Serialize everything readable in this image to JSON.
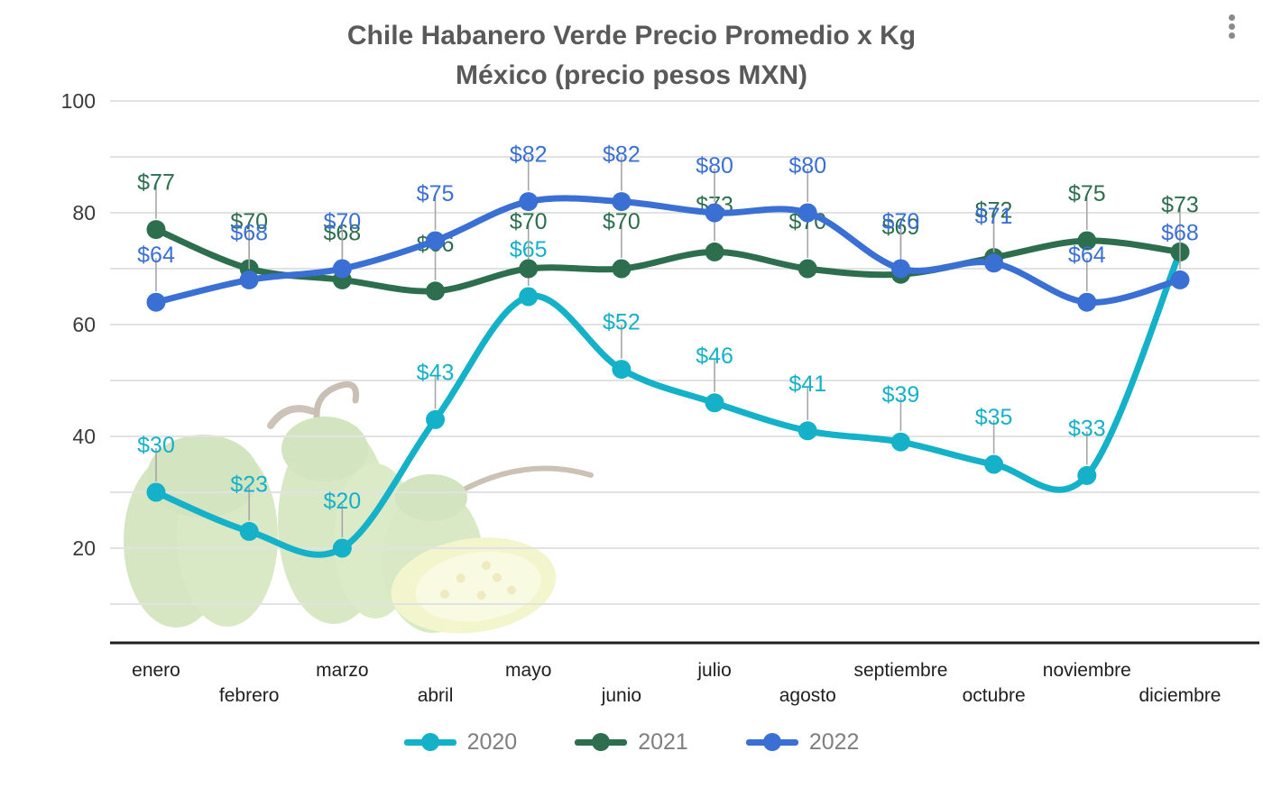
{
  "title": {
    "line1": "Chile Habanero Verde Precio Promedio x Kg",
    "line2": "México (precio pesos MXN)"
  },
  "menu": {
    "icon": "kebab-menu"
  },
  "colors": {
    "series_2020": "#14b1c8",
    "series_2021": "#2d6e4f",
    "series_2022": "#3a6fd4",
    "gridline": "#e2e2e2",
    "axis_line": "#1f1f1f",
    "leader_line": "#a6a6a6",
    "tick_text": "#3a3a3a",
    "month_text": "#1f1f1f",
    "title_text": "#595959",
    "legend_text": "#7f7f7f"
  },
  "chart_data": {
    "type": "line",
    "title": "Chile Habanero Verde Precio Promedio x Kg — México (precio pesos MXN)",
    "categories": [
      "enero",
      "febrero",
      "marzo",
      "abril",
      "mayo",
      "junio",
      "julio",
      "agosto",
      "septiembre",
      "octubre",
      "noviembre",
      "diciembre"
    ],
    "series": [
      {
        "name": "2020",
        "color": "#14b1c8",
        "values": [
          30,
          23,
          20,
          43,
          65,
          52,
          46,
          41,
          39,
          35,
          33,
          73
        ],
        "labels": [
          "$30",
          "$23",
          "$20",
          "$43",
          "$65",
          "$52",
          "$46",
          "$41",
          "$39",
          "$35",
          "$33",
          ""
        ]
      },
      {
        "name": "2021",
        "color": "#2d6e4f",
        "values": [
          77,
          70,
          68,
          66,
          70,
          70,
          73,
          70,
          69,
          72,
          75,
          73
        ],
        "labels": [
          "$77",
          "$70",
          "$68",
          "$66",
          "$70",
          "$70",
          "$73",
          "$70",
          "$69",
          "$72",
          "$75",
          "$73"
        ]
      },
      {
        "name": "2022",
        "color": "#3a6fd4",
        "values": [
          64,
          68,
          70,
          75,
          82,
          82,
          80,
          80,
          70,
          71,
          64,
          68
        ],
        "labels": [
          "$64",
          "$68",
          "$70",
          "$75",
          "$82",
          "$82",
          "$80",
          "$80",
          "$70",
          "$71",
          "$64",
          "$68"
        ]
      }
    ],
    "y_axis": {
      "min": 0,
      "max": 100,
      "tick_labels": [
        20,
        40,
        60,
        80,
        100
      ],
      "gridline_step": 10,
      "unit": "MXN"
    },
    "x_axis": {
      "label_rows": "staggered"
    },
    "legend": {
      "position": "bottom",
      "entries": [
        "2020",
        "2021",
        "2022"
      ]
    },
    "grid": true
  }
}
